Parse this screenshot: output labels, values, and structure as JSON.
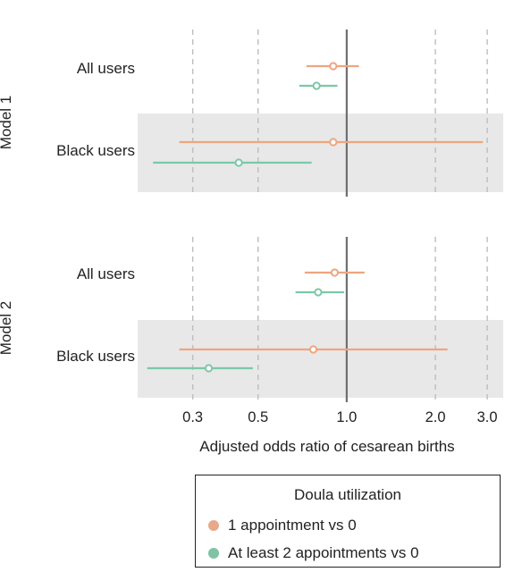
{
  "chart_data": {
    "type": "forest",
    "xlabel": "Adjusted odds ratio of cesarean births",
    "scale": "log",
    "xlim": [
      0.195,
      3.4
    ],
    "xticks": [
      0.3,
      0.5,
      1.0,
      2.0,
      3.0
    ],
    "xtick_labels": [
      "0.3",
      "0.5",
      "1.0",
      "2.0",
      "3.0"
    ],
    "reference_line": 1.0,
    "grid": "vertical dashed",
    "legend": {
      "title": "Doula utilization",
      "placement": "bottom-right",
      "entries": [
        {
          "label": "1 appointment vs 0",
          "color": "#E8A98A"
        },
        {
          "label": "At least 2 appointments vs 0",
          "color": "#7EC3A6"
        }
      ]
    },
    "panels": [
      {
        "name": "Model 1",
        "rows": [
          {
            "label": "All users",
            "shaded": false,
            "estimates": [
              {
                "series": "1 appointment vs 0",
                "or": 0.9,
                "lo": 0.73,
                "hi": 1.1
              },
              {
                "series": "At least 2 appointments vs 0",
                "or": 0.79,
                "lo": 0.69,
                "hi": 0.93
              }
            ]
          },
          {
            "label": "Black users",
            "shaded": true,
            "estimates": [
              {
                "series": "1 appointment vs 0",
                "or": 0.9,
                "lo": 0.27,
                "hi": 2.9
              },
              {
                "series": "At least 2 appointments vs 0",
                "or": 0.43,
                "lo": 0.22,
                "hi": 0.76
              }
            ]
          }
        ]
      },
      {
        "name": "Model 2",
        "rows": [
          {
            "label": "All users",
            "shaded": false,
            "estimates": [
              {
                "series": "1 appointment vs 0",
                "or": 0.91,
                "lo": 0.72,
                "hi": 1.15
              },
              {
                "series": "At least 2 appointments vs 0",
                "or": 0.8,
                "lo": 0.67,
                "hi": 0.98
              }
            ]
          },
          {
            "label": "Black users",
            "shaded": true,
            "estimates": [
              {
                "series": "1 appointment vs 0",
                "or": 0.77,
                "lo": 0.27,
                "hi": 2.2
              },
              {
                "series": "At least 2 appointments vs 0",
                "or": 0.34,
                "lo": 0.21,
                "hi": 0.48
              }
            ]
          }
        ]
      }
    ]
  }
}
